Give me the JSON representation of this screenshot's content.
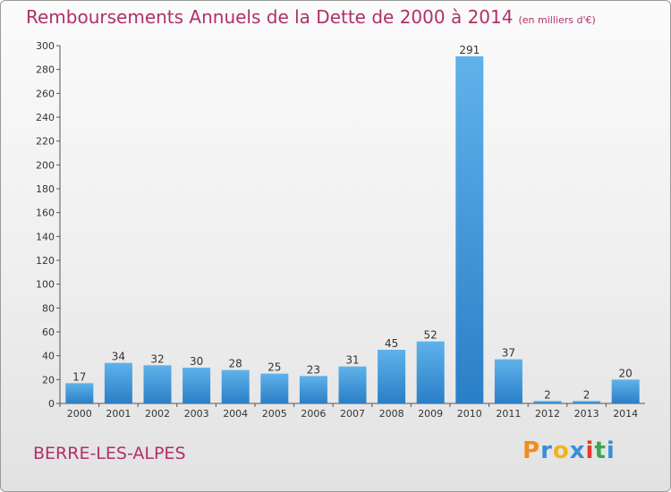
{
  "title": "Remboursements Annuels de la Dette de 2000 à 2014",
  "unit_note": "(en milliers d'€)",
  "commune": "BERRE-LES-ALPES",
  "logo": {
    "letters": [
      "P",
      "r",
      "o",
      "x",
      "i",
      "t",
      "i"
    ],
    "colors": [
      "#f08c1c",
      "#3a8ed6",
      "#f0b41c",
      "#3a8ed6",
      "#e23a2a",
      "#3aa84a",
      "#3a8ed6"
    ]
  },
  "colors": {
    "title": "#b0306a",
    "bar_light": "#5fb2ea",
    "bar_dark": "#2a7fc7"
  },
  "chart_data": {
    "type": "bar",
    "title": "Remboursements Annuels de la Dette de 2000 à 2014",
    "categories": [
      "2000",
      "2001",
      "2002",
      "2003",
      "2004",
      "2005",
      "2006",
      "2007",
      "2008",
      "2009",
      "2010",
      "2011",
      "2012",
      "2013",
      "2014"
    ],
    "values": [
      17,
      34,
      32,
      30,
      28,
      25,
      23,
      31,
      45,
      52,
      291,
      37,
      2,
      2,
      20
    ],
    "ylim": [
      0,
      300
    ],
    "yticks": [
      0,
      20,
      40,
      60,
      80,
      100,
      120,
      140,
      160,
      180,
      200,
      220,
      240,
      260,
      280,
      300
    ],
    "grid": false,
    "legend": "none"
  }
}
